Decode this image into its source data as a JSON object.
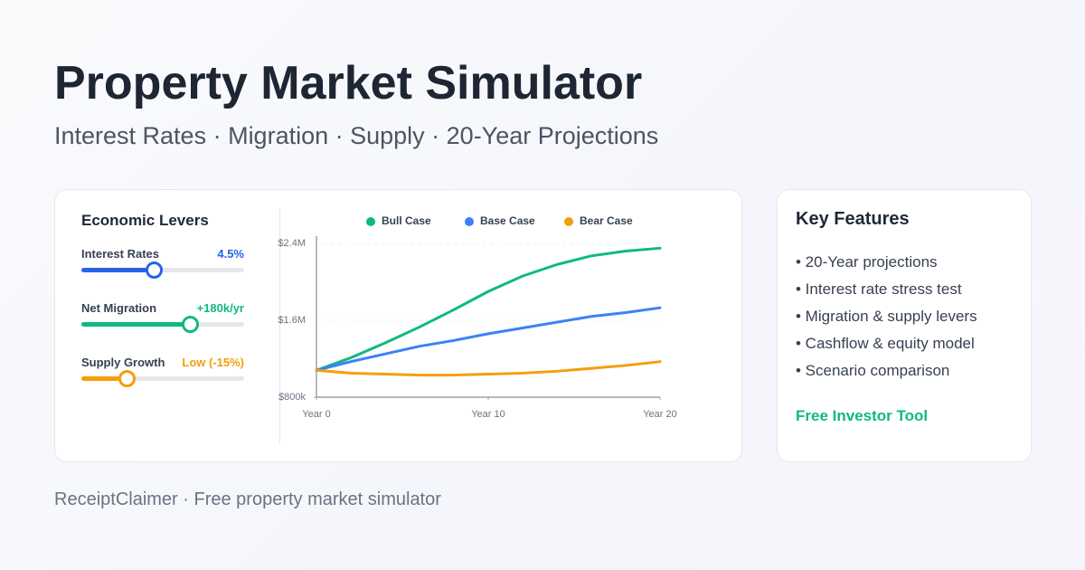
{
  "header": {
    "title": "Property Market Simulator",
    "subtitle": "Interest Rates · Migration · Supply · 20-Year Projections"
  },
  "levers": {
    "title": "Economic Levers",
    "items": [
      {
        "label": "Interest Rates",
        "value": "4.5%"
      },
      {
        "label": "Net Migration",
        "value": "+180k/yr"
      },
      {
        "label": "Supply Growth",
        "value": "Low (-15%)"
      }
    ]
  },
  "chart_data": {
    "type": "line",
    "x": [
      0,
      2,
      4,
      6,
      8,
      10,
      12,
      14,
      16,
      18,
      20
    ],
    "xlim": [
      0,
      20
    ],
    "xticks": [
      {
        "value": 0,
        "label": "Year 0"
      },
      {
        "value": 10,
        "label": "Year 10"
      },
      {
        "value": 20,
        "label": "Year 20"
      }
    ],
    "ylim": [
      800000,
      2400000
    ],
    "yticks": [
      {
        "value": 800000,
        "label": "$800k"
      },
      {
        "value": 1600000,
        "label": "$1.6M"
      },
      {
        "value": 2400000,
        "label": "$2.4M"
      }
    ],
    "grid": true,
    "series": [
      {
        "name": "Bull Case",
        "color": "#10b981",
        "values": [
          1080000,
          1210000,
          1365000,
          1530000,
          1710000,
          1900000,
          2060000,
          2180000,
          2270000,
          2320000,
          2350000
        ]
      },
      {
        "name": "Base Case",
        "color": "#3b82f6",
        "values": [
          1080000,
          1170000,
          1250000,
          1330000,
          1390000,
          1460000,
          1520000,
          1580000,
          1640000,
          1680000,
          1730000
        ]
      },
      {
        "name": "Bear Case",
        "color": "#f59e0b",
        "values": [
          1080000,
          1050000,
          1040000,
          1030000,
          1030000,
          1040000,
          1050000,
          1070000,
          1100000,
          1130000,
          1170000
        ]
      }
    ]
  },
  "features": {
    "title": "Key Features",
    "items": [
      "• 20-Year projections",
      "• Interest rate stress test",
      "• Migration & supply levers",
      "• Cashflow & equity model",
      "• Scenario comparison"
    ],
    "cta": "Free Investor Tool"
  },
  "footer": "ReceiptClaimer · Free property market simulator"
}
